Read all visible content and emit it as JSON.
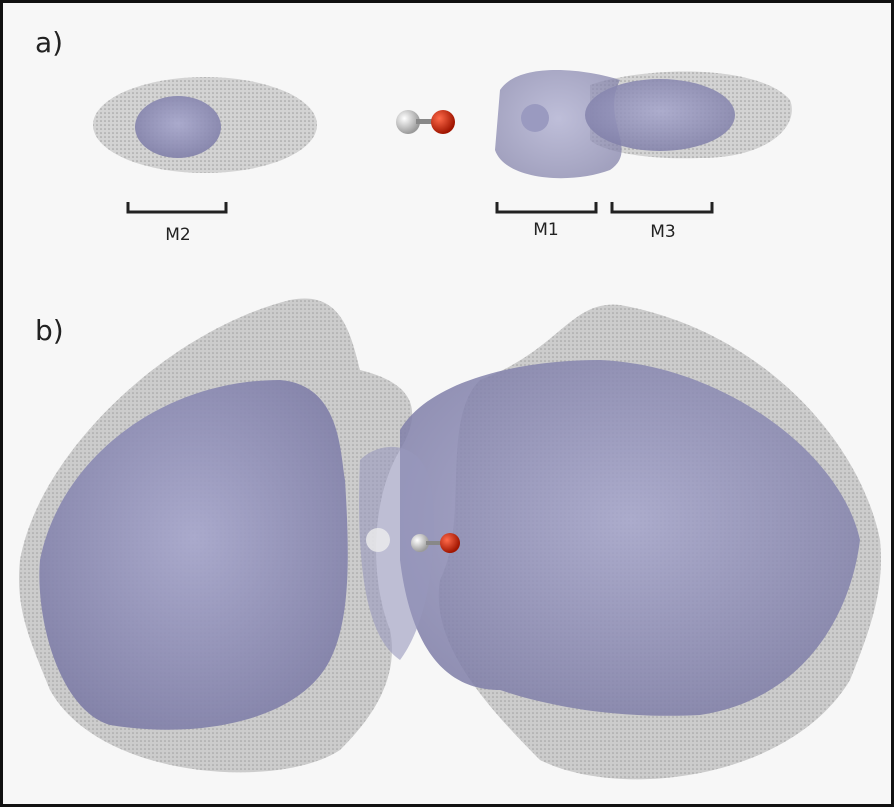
{
  "panels": [
    {
      "label": "a)",
      "brackets": [
        "M2",
        "M1",
        "M3"
      ]
    },
    {
      "label": "b)"
    }
  ]
}
